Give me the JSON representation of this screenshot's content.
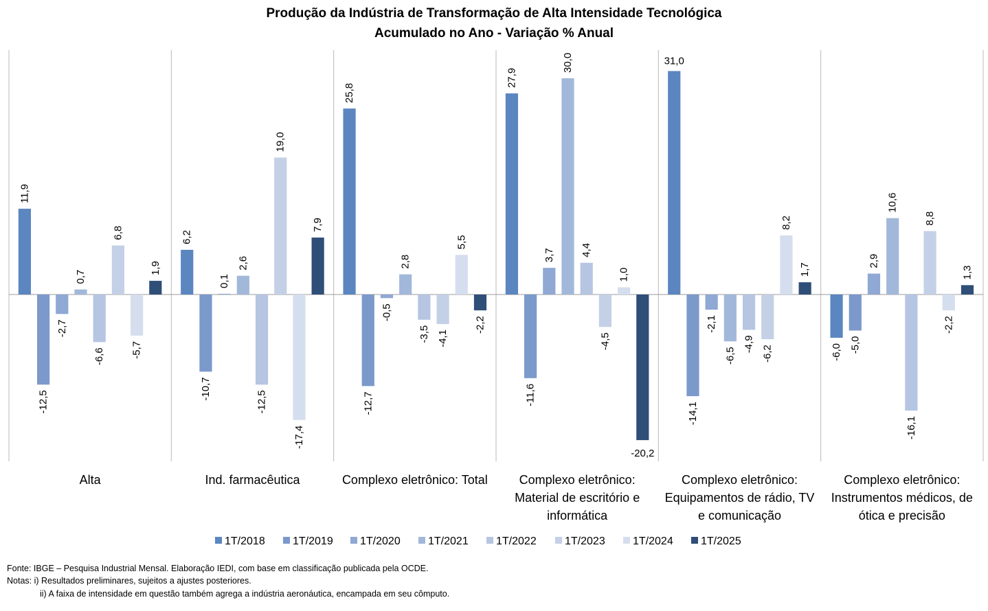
{
  "colors": {
    "series": [
      "#5b86c0",
      "#7b99cb",
      "#8fa8d4",
      "#a2b8da",
      "#b5c5e2",
      "#c4d0e6",
      "#d5deee",
      "#2f4e78"
    ],
    "axis": "#9a9a9a",
    "grid": "#b8b8b8"
  },
  "chart_data": {
    "type": "bar",
    "title": "Produção da Indústria de Transformação de Alta Intensidade Tecnológica",
    "subtitle": "Acumulado no Ano - Variação % Anual",
    "grid": false,
    "legend_position": "bottom",
    "ylim": [
      -24,
      37
    ],
    "categories": [
      [
        "Alta"
      ],
      [
        "Ind. farmacêutica"
      ],
      [
        "Complexo eletrônico: Total"
      ],
      [
        "Complexo eletrônico:",
        "Material de escritório e",
        "informática"
      ],
      [
        "Complexo eletrônico:",
        "Equipamentos de rádio, TV",
        "e comunicação"
      ],
      [
        "Complexo eletrônico:",
        "Instrumentos médicos, de",
        "ótica e precisão"
      ]
    ],
    "series": [
      {
        "name": "1T/2018",
        "values": [
          11.9,
          6.2,
          25.8,
          27.9,
          31.0,
          -6.0
        ],
        "labels": [
          "11,9",
          "6,2",
          "25,8",
          "27,9",
          "31,0",
          "-6,0"
        ]
      },
      {
        "name": "1T/2019",
        "values": [
          -12.5,
          -10.7,
          -12.7,
          -11.6,
          -14.1,
          -5.0
        ],
        "labels": [
          "-12,5",
          "-10,7",
          "-12,7",
          "-11,6",
          "-14,1",
          "-5,0"
        ]
      },
      {
        "name": "1T/2020",
        "values": [
          -2.7,
          0.1,
          -0.5,
          3.7,
          -2.1,
          2.9
        ],
        "labels": [
          "-2,7",
          "0,1",
          "-0,5",
          "3,7",
          "-2,1",
          "2,9"
        ]
      },
      {
        "name": "1T/2021",
        "values": [
          0.7,
          2.6,
          2.8,
          30.0,
          -6.5,
          10.6
        ],
        "labels": [
          "0,7",
          "2,6",
          "2,8",
          "30,0",
          "-6,5",
          "10,6"
        ]
      },
      {
        "name": "1T/2022",
        "values": [
          -6.6,
          -12.5,
          -3.5,
          4.4,
          -4.9,
          -16.1
        ],
        "labels": [
          "-6,6",
          "-12,5",
          "-3,5",
          "4,4",
          "-4,9",
          "-16,1"
        ]
      },
      {
        "name": "1T/2023",
        "values": [
          6.8,
          19.0,
          -4.1,
          -4.5,
          -6.2,
          8.8
        ],
        "labels": [
          "6,8",
          "19,0",
          "-4,1",
          "-4,5",
          "-6,2",
          "8,8"
        ]
      },
      {
        "name": "1T/2024",
        "values": [
          -5.7,
          -17.4,
          5.5,
          1.0,
          8.2,
          -2.2
        ],
        "labels": [
          "-5,7",
          "-17,4",
          "5,5",
          "1,0",
          "8,2",
          "-2,2"
        ]
      },
      {
        "name": "1T/2025",
        "values": [
          1.9,
          7.9,
          -2.2,
          -20.2,
          1.7,
          1.3
        ],
        "labels": [
          "1,9",
          "7,9",
          "-2,2",
          "-20,2",
          "1,7",
          "1,3"
        ]
      }
    ]
  },
  "notes": {
    "source": "Fonte: IBGE – Pesquisa Industrial Mensal. Elaboração IEDI, com base em classificação publicada pela OCDE.",
    "note_i": "Notas: i) Resultados preliminares, sujeitos a ajustes posteriores.",
    "note_ii": "ii) A faixa de intensidade em questão também  agrega a indústria aeronáutica, encampada em seu cômputo."
  }
}
